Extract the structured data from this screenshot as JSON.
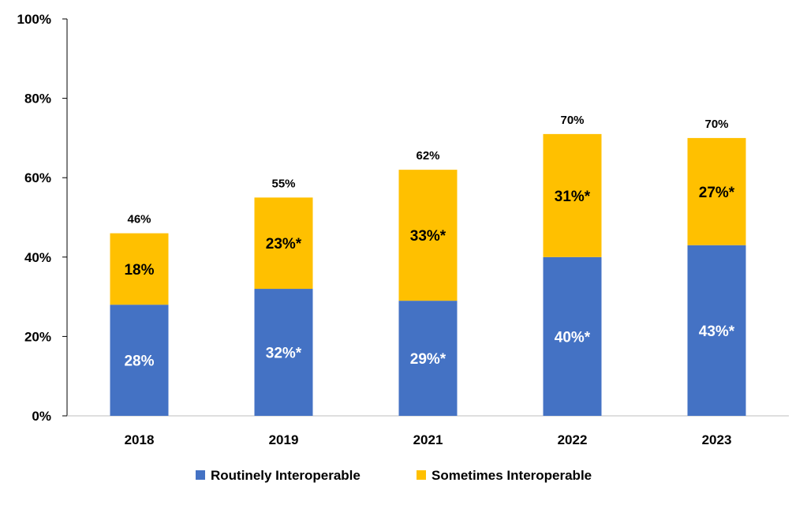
{
  "chart_data": {
    "type": "bar",
    "stacked": true,
    "title": "",
    "xlabel": "",
    "ylabel": "",
    "ylim": [
      0,
      100
    ],
    "yticks": [
      "0%",
      "20%",
      "40%",
      "60%",
      "80%",
      "100%"
    ],
    "ytick_values": [
      0,
      20,
      40,
      60,
      80,
      100
    ],
    "grid": false,
    "legend_position": "bottom",
    "categories": [
      "2018",
      "2019",
      "2021",
      "2022",
      "2023"
    ],
    "series": [
      {
        "name": "Routinely Interoperable",
        "color": "#4472C4",
        "values": [
          28,
          32,
          29,
          40,
          43
        ],
        "labels": [
          "28%",
          "32%*",
          "29%*",
          "40%*",
          "43%*"
        ],
        "label_color": "#FFFFFF"
      },
      {
        "name": "Sometimes Interoperable",
        "color": "#FFC000",
        "values": [
          18,
          23,
          33,
          31,
          27
        ],
        "labels": [
          "18%",
          "23%*",
          "33%*",
          "31%*",
          "27%*"
        ],
        "label_color": "#000000"
      }
    ],
    "totals": [
      "46%",
      "55%",
      "62%",
      "70%",
      "70%"
    ]
  }
}
